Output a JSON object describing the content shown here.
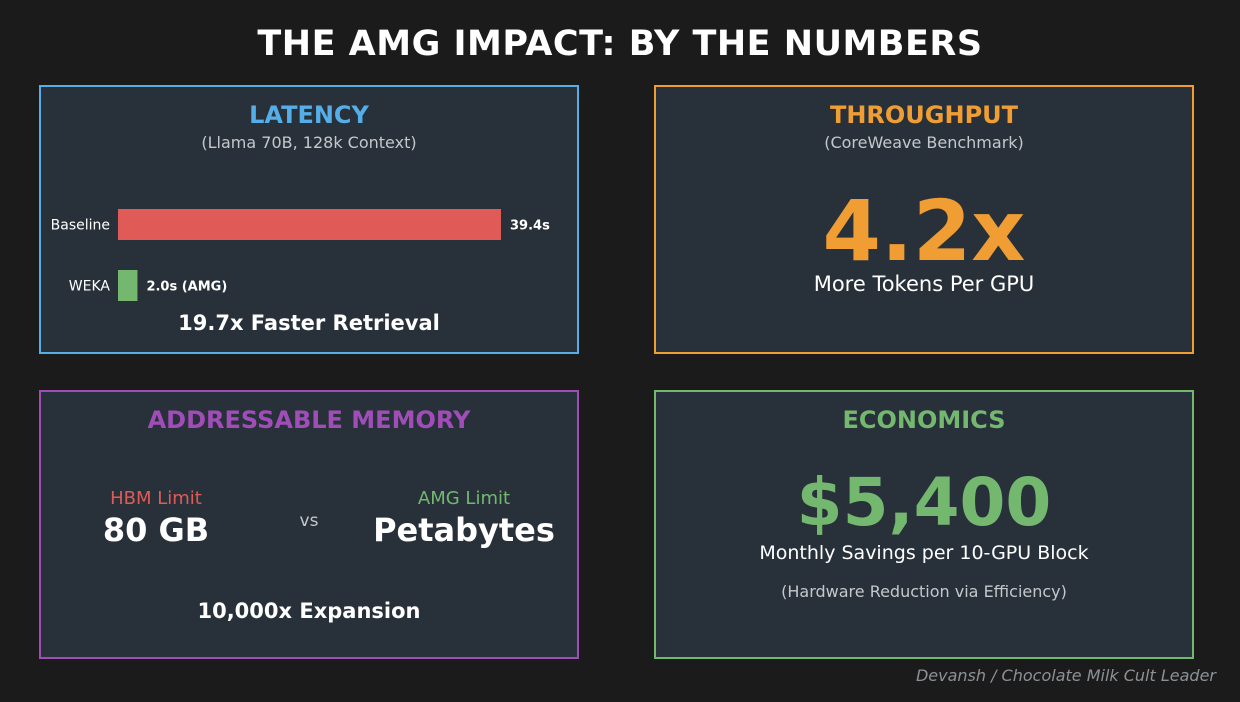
{
  "title": "THE AMG IMPACT: BY THE NUMBERS",
  "colors": {
    "background": "#1b1b1b",
    "panel": "#28313a",
    "latency": "#56aee8",
    "throughput": "#f09d34",
    "memory": "#a04db8",
    "economics": "#74b870",
    "baseline_bar": "#e05b58",
    "weka_bar": "#74b870"
  },
  "latency": {
    "title": "LATENCY",
    "subtitle": "(Llama 70B, 128k Context)",
    "footer": "19.7x Faster Retrieval"
  },
  "chart_data": {
    "type": "bar",
    "orientation": "horizontal",
    "categories": [
      "Baseline",
      "WEKA"
    ],
    "values": [
      39.4,
      2.0
    ],
    "data_labels": [
      "39.4s",
      "2.0s (AMG)"
    ],
    "bar_colors": [
      "#e05b58",
      "#74b870"
    ],
    "xlim": [
      0,
      39.4
    ],
    "grid": false
  },
  "throughput": {
    "title": "THROUGHPUT",
    "subtitle": "(CoreWeave Benchmark)",
    "value": "4.2x",
    "caption": "More Tokens Per GPU"
  },
  "memory": {
    "title": "ADDRESSABLE MEMORY",
    "hbm_label": "HBM Limit",
    "hbm_value": "80 GB",
    "vs": "vs",
    "amg_label": "AMG Limit",
    "amg_value": "Petabytes",
    "footer": "10,000x Expansion"
  },
  "economics": {
    "title": "ECONOMICS",
    "value": "$5,400",
    "caption": "Monthly Savings per 10-GPU Block",
    "note": "(Hardware Reduction via Efficiency)"
  },
  "credit": "Devansh / Chocolate Milk Cult Leader"
}
